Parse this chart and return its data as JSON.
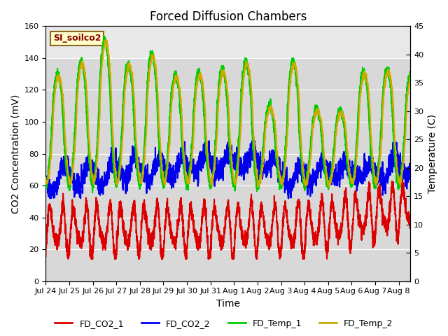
{
  "title": "Forced Diffusion Chambers",
  "xlabel": "Time",
  "ylabel_left": "CO2 Concentration (mV)",
  "ylabel_right": "Temperature (C)",
  "ylim_left": [
    0,
    160
  ],
  "ylim_right": [
    0,
    45
  ],
  "xlim_days": [
    0,
    15.5
  ],
  "x_tick_labels": [
    "Jul 24",
    "Jul 25",
    "Jul 26",
    "Jul 27",
    "Jul 28",
    "Jul 29",
    "Jul 30",
    "Jul 31",
    "Aug 1",
    "Aug 2",
    "Aug 3",
    "Aug 4",
    "Aug 5",
    "Aug 6",
    "Aug 7",
    "Aug 8"
  ],
  "x_tick_positions": [
    0,
    1,
    2,
    3,
    4,
    5,
    6,
    7,
    8,
    9,
    10,
    11,
    12,
    13,
    14,
    15
  ],
  "series_colors": {
    "FD_CO2_1": "#dd0000",
    "FD_CO2_2": "#0000ee",
    "FD_Temp_1": "#00cc00",
    "FD_Temp_2": "#ccaa00"
  },
  "legend_labels": [
    "FD_CO2_1",
    "FD_CO2_2",
    "FD_Temp_1",
    "FD_Temp_2"
  ],
  "site_label": "SI_soilco2",
  "background_color": "#ffffff",
  "plot_bg_color": "#d8d8d8",
  "gray_band_color": "#e8e8e8",
  "gray_band_ymin": 140,
  "title_fontsize": 12,
  "axis_label_fontsize": 10,
  "tick_fontsize": 8,
  "legend_fontsize": 9,
  "linewidth_co2": 1.5,
  "linewidth_temp": 1.5
}
